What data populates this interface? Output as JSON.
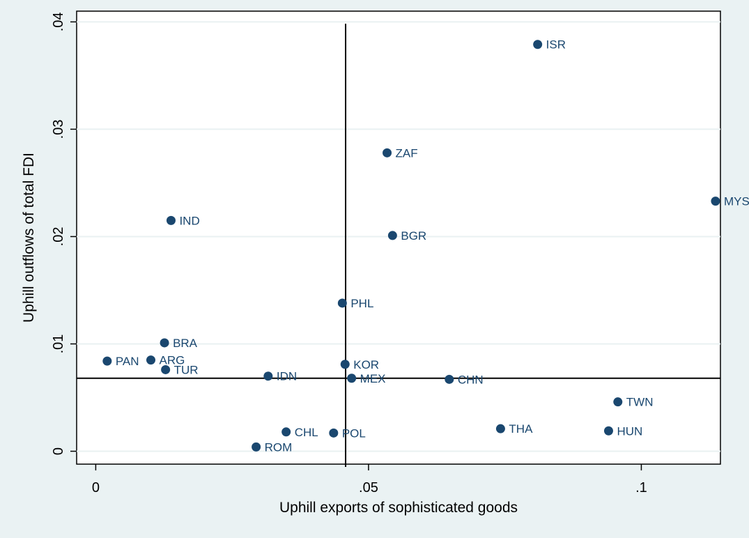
{
  "chart_data": {
    "type": "scatter",
    "title": "",
    "xlabel": "Uphill exports of sophisticated goods",
    "ylabel": "Uphill outflows of total FDI",
    "xlim": [
      -0.0035,
      0.1145
    ],
    "ylim": [
      -0.0012,
      0.041
    ],
    "xticks": [
      {
        "value": 0,
        "label": "0"
      },
      {
        "value": 0.05,
        "label": ".05"
      },
      {
        "value": 0.1,
        "label": ".1"
      }
    ],
    "yticks": [
      {
        "value": 0,
        "label": "0"
      },
      {
        "value": 0.01,
        "label": ".01"
      },
      {
        "value": 0.02,
        "label": ".02"
      },
      {
        "value": 0.03,
        "label": ".03"
      },
      {
        "value": 0.04,
        "label": ".04"
      }
    ],
    "grid": "horizontal",
    "reference_lines": {
      "x": 0.0458,
      "y": 0.0068
    },
    "marker_color": "#1a476f",
    "points": [
      {
        "label": "ISR",
        "x": 0.081,
        "y": 0.0379
      },
      {
        "label": "ZAF",
        "x": 0.0534,
        "y": 0.0278
      },
      {
        "label": "MYS",
        "x": 0.1136,
        "y": 0.0233
      },
      {
        "label": "IND",
        "x": 0.0138,
        "y": 0.0215
      },
      {
        "label": "BGR",
        "x": 0.0544,
        "y": 0.0201
      },
      {
        "label": "PHL",
        "x": 0.0452,
        "y": 0.0138
      },
      {
        "label": "BRA",
        "x": 0.0126,
        "y": 0.0101
      },
      {
        "label": "PAN",
        "x": 0.0021,
        "y": 0.0084
      },
      {
        "label": "ARG",
        "x": 0.0101,
        "y": 0.0085
      },
      {
        "label": "TUR",
        "x": 0.0128,
        "y": 0.0076
      },
      {
        "label": "KOR",
        "x": 0.0457,
        "y": 0.0081
      },
      {
        "label": "IDN",
        "x": 0.0316,
        "y": 0.007
      },
      {
        "label": "MEX",
        "x": 0.0469,
        "y": 0.0068
      },
      {
        "label": "CHN",
        "x": 0.0648,
        "y": 0.0067
      },
      {
        "label": "TWN",
        "x": 0.0957,
        "y": 0.0046
      },
      {
        "label": "THA",
        "x": 0.0742,
        "y": 0.0021
      },
      {
        "label": "HUN",
        "x": 0.094,
        "y": 0.0019
      },
      {
        "label": "CHL",
        "x": 0.0349,
        "y": 0.0018
      },
      {
        "label": "POL",
        "x": 0.0436,
        "y": 0.0017
      },
      {
        "label": "ROM",
        "x": 0.0294,
        "y": 0.0004
      }
    ]
  }
}
